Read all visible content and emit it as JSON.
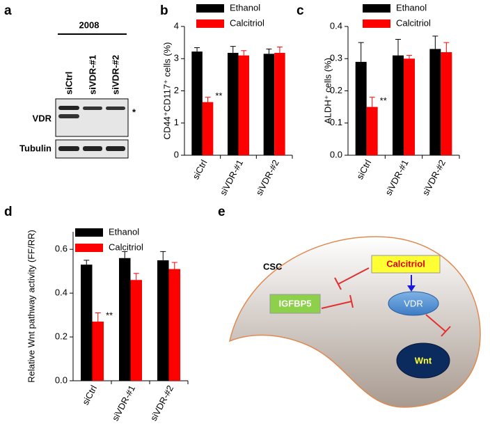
{
  "panel_a": {
    "label": "a",
    "cell_line": "2008",
    "lanes": [
      "siCtrl",
      "siVDR-#1",
      "siVDR-#2"
    ],
    "rows": [
      "VDR",
      "Tubulin"
    ],
    "marker": "*"
  },
  "chart_data": [
    {
      "type": "bar",
      "label": "b",
      "y_label": "CD44⁺CD117⁺ cells (%)",
      "categories": [
        "siCtrl",
        "siVDR-#1",
        "siVDR-#2"
      ],
      "series": [
        {
          "name": "Ethanol",
          "color": "#000000",
          "values": [
            3.22,
            3.18,
            3.15
          ],
          "errors": [
            0.12,
            0.2,
            0.15
          ]
        },
        {
          "name": "Calcitriol",
          "color": "#ff0000",
          "values": [
            1.65,
            3.1,
            3.18
          ],
          "errors": [
            0.15,
            0.15,
            0.18
          ]
        }
      ],
      "ylim": [
        0,
        4
      ],
      "yticks": [
        0,
        1,
        2,
        3,
        4
      ],
      "annotation": "**"
    },
    {
      "type": "bar",
      "label": "c",
      "y_label": "ALDH⁺ cells (%)",
      "categories": [
        "siCtrl",
        "siVDR-#1",
        "siVDR-#2"
      ],
      "series": [
        {
          "name": "Ethanol",
          "color": "#000000",
          "values": [
            0.29,
            0.31,
            0.33
          ],
          "errors": [
            0.06,
            0.05,
            0.04
          ]
        },
        {
          "name": "Calcitriol",
          "color": "#ff0000",
          "values": [
            0.15,
            0.3,
            0.32
          ],
          "errors": [
            0.03,
            0.01,
            0.03
          ]
        }
      ],
      "ylim": [
        0,
        0.4
      ],
      "yticks": [
        {
          "value": 0,
          "label": "0.0"
        },
        0.1,
        0.2,
        0.3,
        0.4
      ],
      "annotation": "**"
    },
    {
      "type": "bar",
      "label": "d",
      "y_label": "Relative Wnt pathway activity (FF/RR)",
      "categories": [
        "siCtrl",
        "siVDR-#1",
        "siVDR-#2"
      ],
      "series": [
        {
          "name": "Ethanol",
          "color": "#000000",
          "values": [
            0.53,
            0.56,
            0.55
          ],
          "errors": [
            0.02,
            0.03,
            0.04
          ]
        },
        {
          "name": "Calcitriol",
          "color": "#ff0000",
          "values": [
            0.27,
            0.46,
            0.51
          ],
          "errors": [
            0.04,
            0.03,
            0.03
          ]
        }
      ],
      "ylim": [
        0,
        0.68
      ],
      "yticks": [
        {
          "value": 0,
          "label": "0.0"
        },
        0.2,
        0.4,
        0.6
      ],
      "annotation": "**"
    }
  ],
  "diagram": {
    "label": "e",
    "nodes": [
      "CSC",
      "Calcitriol",
      "IGFBP5",
      "VDR",
      "Wnt"
    ]
  }
}
